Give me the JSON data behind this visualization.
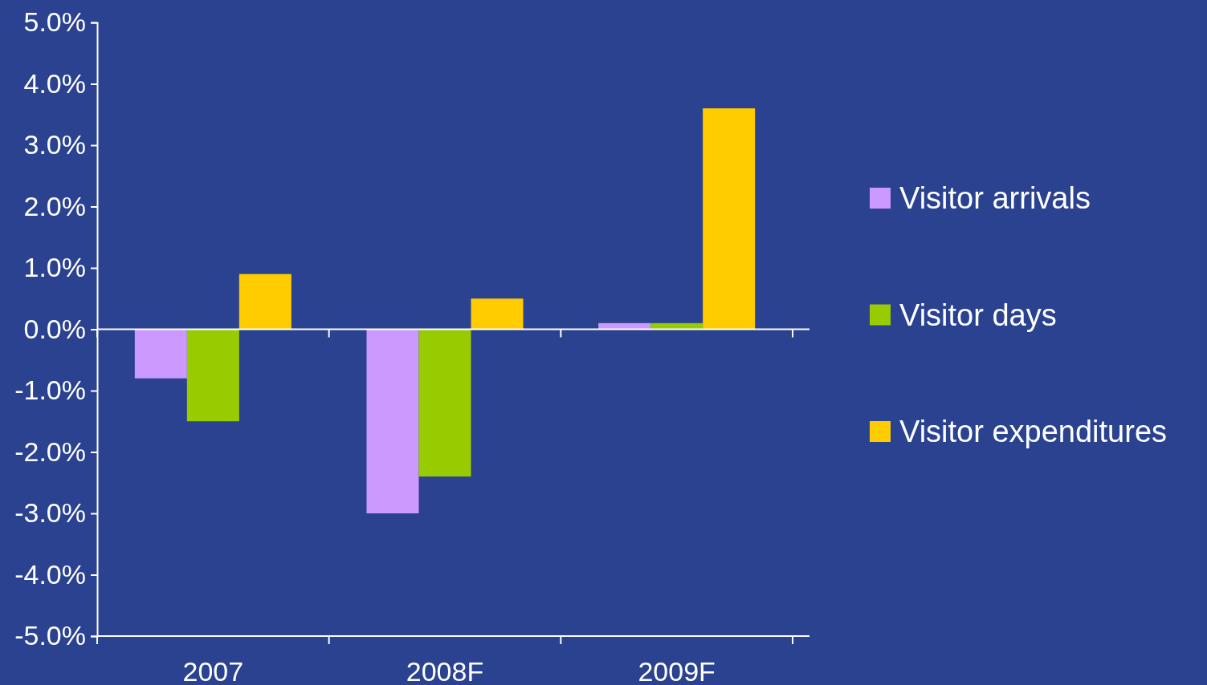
{
  "chart_data": {
    "type": "bar",
    "categories": [
      "2007",
      "2008F",
      "2009F"
    ],
    "series": [
      {
        "name": "Visitor arrivals",
        "color": "#cc99ff",
        "values": [
          -0.8,
          -3.0,
          0.1
        ]
      },
      {
        "name": "Visitor days",
        "color": "#99cc00",
        "values": [
          -1.5,
          -2.4,
          0.1
        ]
      },
      {
        "name": "Visitor expenditures",
        "color": "#ffcc00",
        "values": [
          0.9,
          0.5,
          3.6
        ]
      }
    ],
    "ylim": [
      -5,
      5
    ],
    "yticks": [
      {
        "value": 5,
        "label": "5.0%"
      },
      {
        "value": 4,
        "label": "4.0%"
      },
      {
        "value": 3,
        "label": "3.0%"
      },
      {
        "value": 2,
        "label": "2.0%"
      },
      {
        "value": 1,
        "label": "1.0%"
      },
      {
        "value": 0,
        "label": "0.0%"
      },
      {
        "value": -1,
        "label": "-1.0%"
      },
      {
        "value": -2,
        "label": "-2.0%"
      },
      {
        "value": -3,
        "label": "-3.0%"
      },
      {
        "value": -4,
        "label": "-4.0%"
      },
      {
        "value": -5,
        "label": "-5.0%"
      }
    ],
    "legend": "right"
  }
}
